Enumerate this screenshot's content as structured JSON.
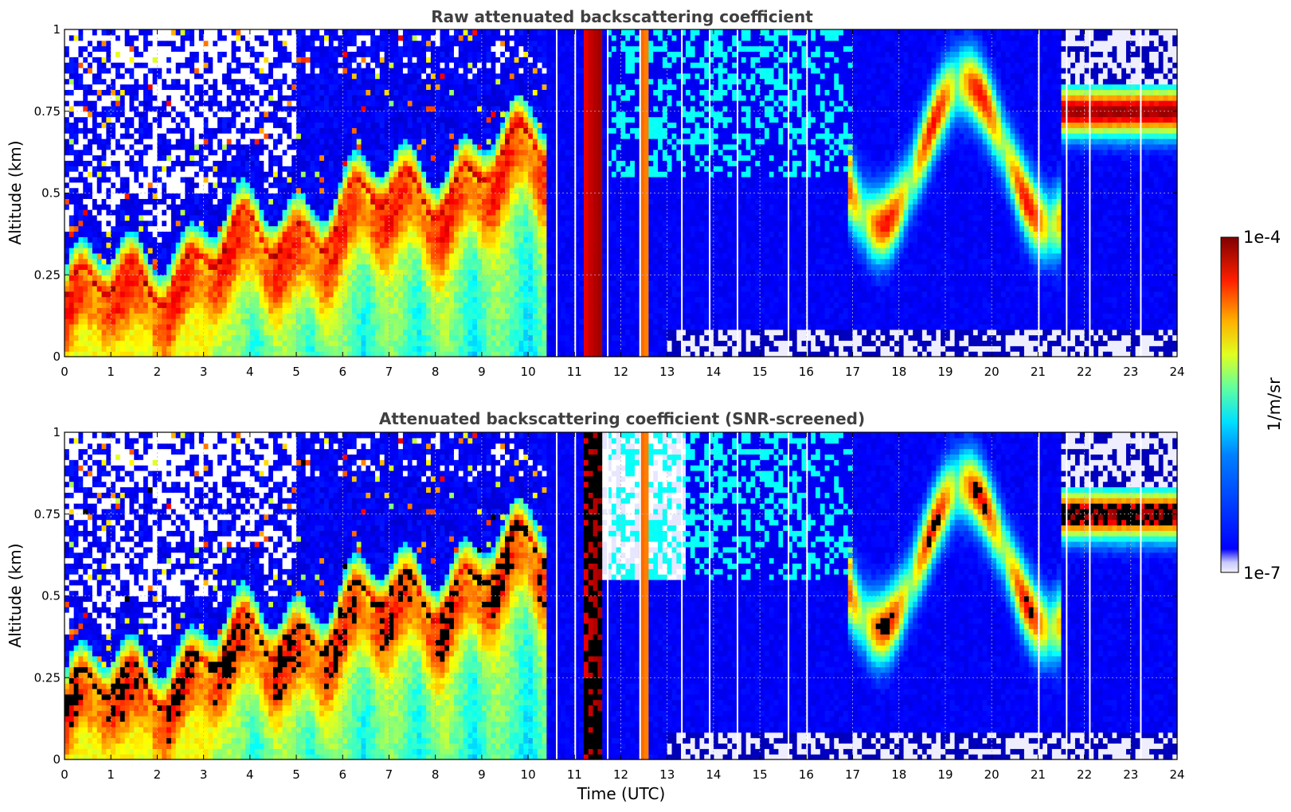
{
  "chart_data": [
    {
      "type": "heatmap",
      "id": "raw",
      "title": "Raw attenuated backscattering coefficient",
      "xlabel": "",
      "ylabel": "Altitude (km)",
      "xlim": [
        0,
        24
      ],
      "ylim": [
        0,
        1
      ],
      "x_ticks": [
        "0",
        "1",
        "2",
        "3",
        "4",
        "5",
        "6",
        "7",
        "8",
        "9",
        "10",
        "11",
        "12",
        "13",
        "14",
        "15",
        "16",
        "17",
        "18",
        "19",
        "20",
        "21",
        "22",
        "23",
        "24"
      ],
      "y_ticks": [
        "0",
        "0.25",
        "0.5",
        "0.75",
        "1"
      ],
      "grid": true,
      "screened": false
    },
    {
      "type": "heatmap",
      "id": "screened",
      "title": "Attenuated backscattering coefficient (SNR-screened)",
      "xlabel": "Time (UTC)",
      "ylabel": "Altitude (km)",
      "xlim": [
        0,
        24
      ],
      "ylim": [
        0,
        1
      ],
      "x_ticks": [
        "0",
        "1",
        "2",
        "3",
        "4",
        "5",
        "6",
        "7",
        "8",
        "9",
        "10",
        "11",
        "12",
        "13",
        "14",
        "15",
        "16",
        "17",
        "18",
        "19",
        "20",
        "21",
        "22",
        "23",
        "24"
      ],
      "y_ticks": [
        "0",
        "0.25",
        "0.5",
        "0.75",
        "1"
      ],
      "grid": true,
      "screened": true
    }
  ],
  "colorbar": {
    "label": "1/m/sr",
    "min_label": "1e-7",
    "max_label": "1e-4",
    "scale": "log",
    "colormap": "jet"
  },
  "gap_times_utc": [
    10.6,
    11.0,
    11.7,
    12.4,
    13.3,
    13.9,
    14.5,
    15.6,
    16.0,
    21.0,
    21.6,
    22.1,
    23.2
  ]
}
